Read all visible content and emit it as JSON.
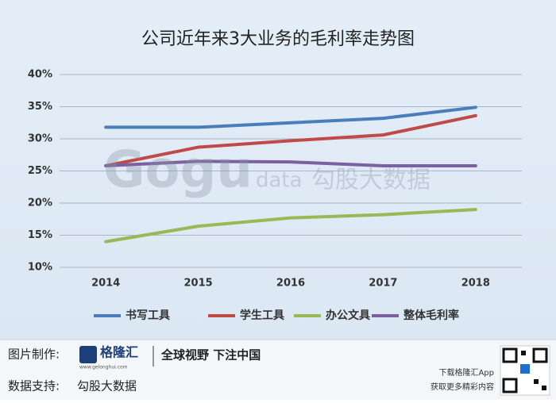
{
  "chart_data": {
    "type": "line",
    "title": "公司近年来3大业务的毛利率走势图",
    "categories": [
      "2014",
      "2015",
      "2016",
      "2017",
      "2018"
    ],
    "series": [
      {
        "name": "书写工具",
        "color": "#4a7ebb",
        "values": [
          31.8,
          31.8,
          32.5,
          33.2,
          34.9
        ]
      },
      {
        "name": "学生工具",
        "color": "#be4b48",
        "values": [
          25.8,
          28.7,
          29.7,
          30.6,
          33.6
        ]
      },
      {
        "name": "办公文具",
        "color": "#98b954",
        "values": [
          14.0,
          16.4,
          17.7,
          18.2,
          19.0
        ]
      },
      {
        "name": "整体毛利率",
        "color": "#7d60a0",
        "values": [
          25.8,
          26.5,
          26.4,
          25.8,
          25.8
        ]
      }
    ],
    "ylim": [
      10,
      40
    ],
    "yticks": [
      {
        "value": 10,
        "label": "10%"
      },
      {
        "value": 15,
        "label": "15%"
      },
      {
        "value": 20,
        "label": "20%"
      },
      {
        "value": 25,
        "label": "25%"
      },
      {
        "value": 30,
        "label": "30%"
      },
      {
        "value": 35,
        "label": "35%"
      },
      {
        "value": 40,
        "label": "40%"
      }
    ],
    "grid": true,
    "legend": "bottom",
    "watermark": [
      "Gogu",
      "data",
      "勾股大数据"
    ]
  },
  "footer": {
    "made_by": "图片制作:",
    "logo": "格隆汇",
    "logo_url": "www.gelonghui.com",
    "slogan": "全球视野 下注中国",
    "data_by": "数据支持:",
    "data_source": "勾股大数据",
    "app_line1": "下载格隆汇App",
    "app_line2": "获取更多精彩内容"
  }
}
